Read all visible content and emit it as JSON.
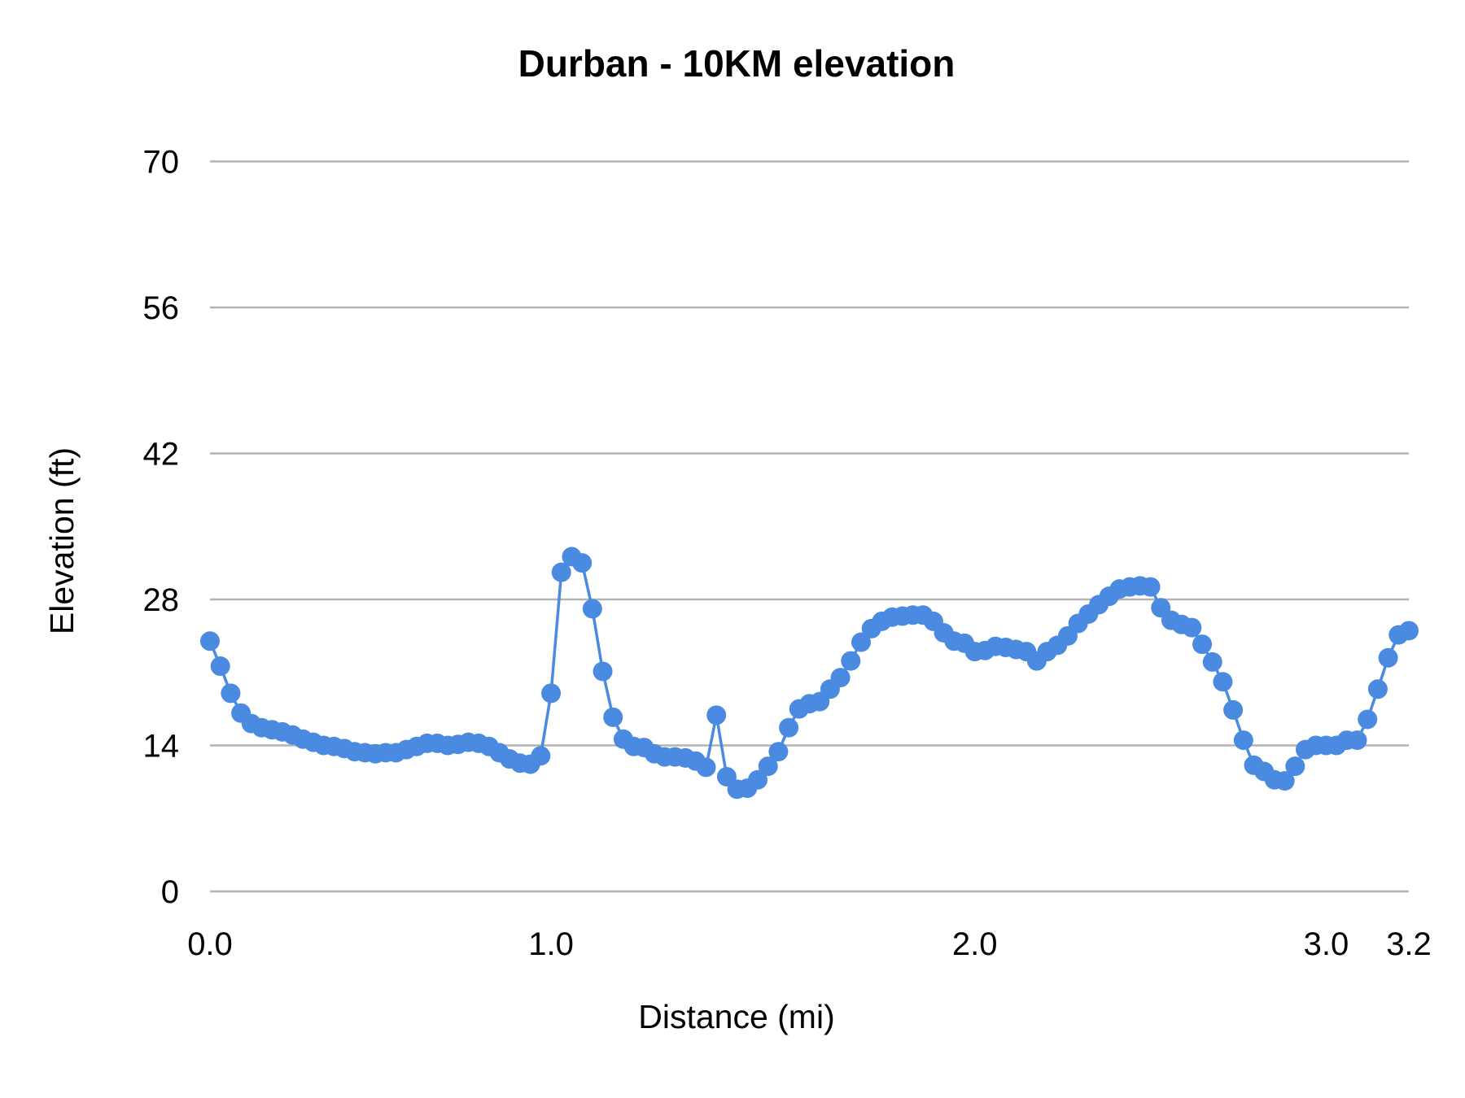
{
  "chart_data": {
    "type": "line",
    "title": "Durban - 10KM elevation",
    "xlabel": "Distance (mi)",
    "ylabel": "Elevation (ft)",
    "ylim": [
      0,
      70
    ],
    "y_ticks": [
      "0",
      "14",
      "28",
      "42",
      "56",
      "70"
    ],
    "y_tick_values": [
      0,
      14,
      28,
      42,
      56,
      70
    ],
    "x_tick_labels": [
      {
        "index": 0,
        "label": "0.0"
      },
      {
        "index": 33,
        "label": "1.0"
      },
      {
        "index": 74,
        "label": "2.0"
      },
      {
        "index": 108,
        "label": "3.0"
      },
      {
        "index": 116,
        "label": "3.2"
      }
    ],
    "grid": "horizontal",
    "markers": true,
    "line_color": "#4a8ae0",
    "grid_color": "#b3b3b3",
    "values": [
      24.0,
      21.6,
      19.0,
      17.1,
      16.1,
      15.7,
      15.5,
      15.3,
      15.0,
      14.6,
      14.3,
      14.0,
      13.9,
      13.7,
      13.4,
      13.3,
      13.2,
      13.3,
      13.3,
      13.6,
      13.9,
      14.2,
      14.2,
      14.0,
      14.1,
      14.3,
      14.2,
      13.9,
      13.3,
      12.7,
      12.3,
      12.2,
      13.0,
      19.0,
      30.6,
      32.1,
      31.5,
      27.1,
      21.1,
      16.7,
      14.6,
      13.9,
      13.8,
      13.2,
      12.9,
      12.9,
      12.8,
      12.5,
      11.9,
      16.9,
      11.0,
      9.8,
      9.9,
      10.7,
      12.0,
      13.4,
      15.7,
      17.5,
      18.0,
      18.2,
      19.4,
      20.5,
      22.1,
      23.9,
      25.2,
      25.9,
      26.3,
      26.4,
      26.5,
      26.5,
      25.9,
      24.8,
      24.0,
      23.8,
      23.0,
      23.1,
      23.5,
      23.4,
      23.2,
      23.0,
      22.1,
      23.0,
      23.6,
      24.5,
      25.7,
      26.6,
      27.5,
      28.3,
      29.0,
      29.2,
      29.3,
      29.2,
      27.2,
      26.0,
      25.6,
      25.3,
      23.7,
      22.0,
      20.1,
      17.4,
      14.5,
      12.1,
      11.5,
      10.7,
      10.6,
      12.0,
      13.6,
      14.0,
      14.0,
      14.0,
      14.5,
      14.5,
      16.5,
      19.4,
      22.4,
      24.6,
      25.0
    ]
  }
}
